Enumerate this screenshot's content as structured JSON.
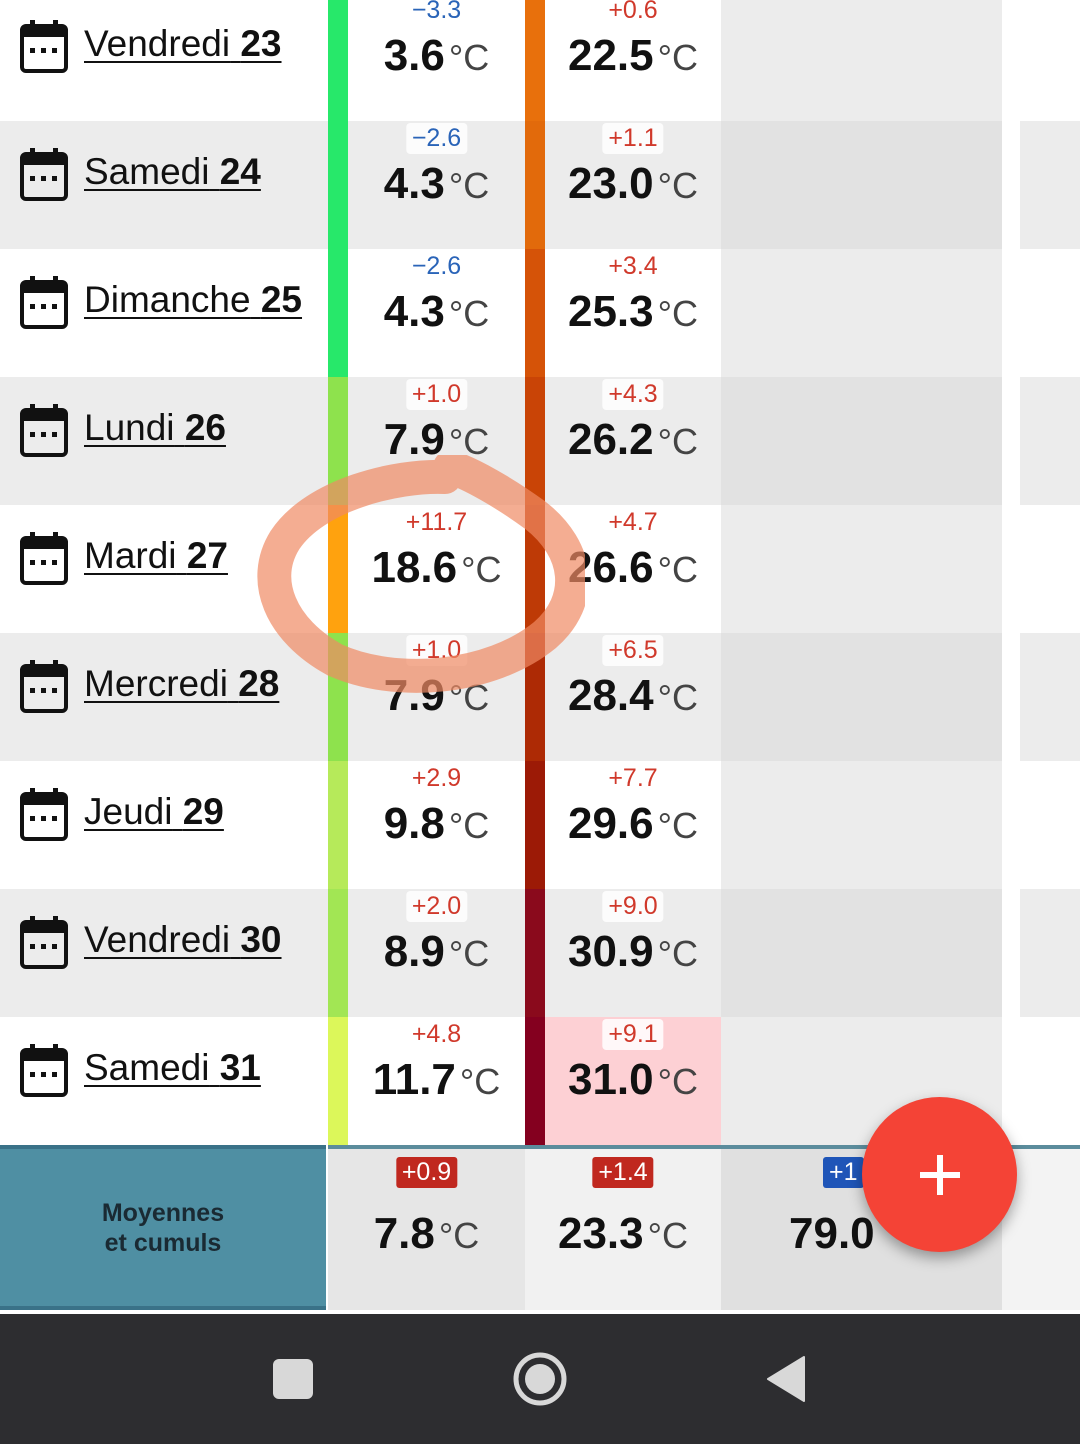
{
  "rows": [
    {
      "day": "Vendredi",
      "num": "23",
      "min_delta": "−3.3",
      "min": "3.6",
      "max_delta": "+0.6",
      "max": "22.5",
      "unit": "°C"
    },
    {
      "day": "Samedi",
      "num": "24",
      "min_delta": "−2.6",
      "min": "4.3",
      "max_delta": "+1.1",
      "max": "23.0",
      "unit": "°C"
    },
    {
      "day": "Dimanche",
      "num": "25",
      "min_delta": "−2.6",
      "min": "4.3",
      "max_delta": "+3.4",
      "max": "25.3",
      "unit": "°C"
    },
    {
      "day": "Lundi",
      "num": "26",
      "min_delta": "+1.0",
      "min": "7.9",
      "max_delta": "+4.3",
      "max": "26.2",
      "unit": "°C"
    },
    {
      "day": "Mardi",
      "num": "27",
      "min_delta": "+11.7",
      "min": "18.6",
      "max_delta": "+4.7",
      "max": "26.6",
      "unit": "°C"
    },
    {
      "day": "Mercredi",
      "num": "28",
      "min_delta": "+1.0",
      "min": "7.9",
      "max_delta": "+6.5",
      "max": "28.4",
      "unit": "°C"
    },
    {
      "day": "Jeudi",
      "num": "29",
      "min_delta": "+2.9",
      "min": "9.8",
      "max_delta": "+7.7",
      "max": "29.6",
      "unit": "°C"
    },
    {
      "day": "Vendredi",
      "num": "30",
      "min_delta": "+2.0",
      "min": "8.9",
      "max_delta": "+9.0",
      "max": "30.9",
      "unit": "°C"
    },
    {
      "day": "Samedi",
      "num": "31",
      "min_delta": "+4.8",
      "min": "11.7",
      "max_delta": "+9.1",
      "max": "31.0",
      "unit": "°C"
    }
  ],
  "colors": {
    "min_bar": [
      "#27e86a",
      "#27e86a",
      "#27e86a",
      "#8ee24d",
      "#ffa20e",
      "#8ee24d",
      "#b6ea5a",
      "#a2e654",
      "#dcf75a"
    ],
    "max_bar": [
      "#e8700c",
      "#e26a0b",
      "#d55308",
      "#c94406",
      "#be3a06",
      "#ad2a05",
      "#9c1a06",
      "#8a0a1c",
      "#84001f"
    ],
    "fab": "#f44336",
    "footer_label_bg": "#4f8fa3"
  },
  "footer": {
    "label_line1": "Moyennes",
    "label_line2": "et cumuls",
    "min_delta": "+0.9",
    "min": "7.8",
    "max_delta": "+1.4",
    "max": "23.3",
    "rain_delta": "+1",
    "rain": "79.0",
    "unit": "°C"
  },
  "fab": {
    "icon": "plus-icon"
  },
  "navbar": {
    "recents_icon": "square-icon",
    "home_icon": "circle-icon",
    "back_icon": "triangle-back-icon"
  }
}
